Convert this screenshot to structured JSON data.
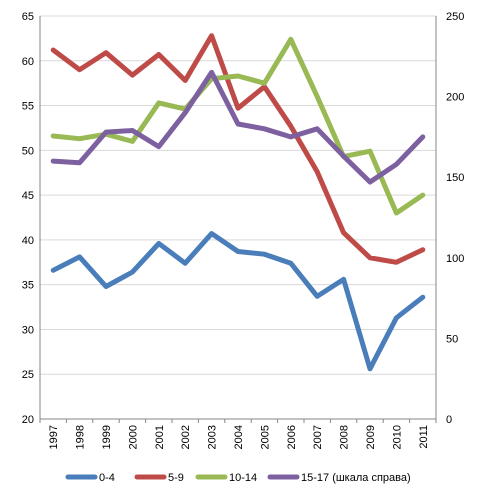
{
  "chart_data": {
    "type": "line",
    "title": "",
    "xlabel": "",
    "ylabel": "",
    "x": [
      "1997",
      "1998",
      "1999",
      "2000",
      "2001",
      "2002",
      "2003",
      "2004",
      "2005",
      "2006",
      "2007",
      "2008",
      "2009",
      "2010",
      "2011"
    ],
    "y_left_range": [
      20,
      65
    ],
    "y_left_ticks": [
      "20",
      "25",
      "30",
      "35",
      "40",
      "45",
      "50",
      "55",
      "60",
      "65"
    ],
    "y_right_range": [
      0,
      250
    ],
    "y_right_ticks": [
      "0",
      "50",
      "100",
      "150",
      "200",
      "250"
    ],
    "grid": "horizontal",
    "legend_position": "bottom",
    "series": [
      {
        "name": "0-4",
        "axis": "left",
        "color": "#4a7ebb",
        "values": [
          36.6,
          38.1,
          34.8,
          36.4,
          39.6,
          37.4,
          40.7,
          38.7,
          38.4,
          37.4,
          33.7,
          35.6,
          25.6,
          31.3,
          33.6
        ]
      },
      {
        "name": "5-9",
        "axis": "left",
        "color": "#be4b48",
        "values": [
          61.2,
          59.0,
          60.9,
          58.4,
          60.7,
          57.8,
          62.8,
          54.7,
          57.1,
          52.7,
          47.6,
          40.8,
          38.0,
          37.5,
          38.9
        ]
      },
      {
        "name": "10-14",
        "axis": "left",
        "color": "#98b954",
        "values": [
          51.6,
          51.3,
          51.8,
          51.0,
          55.3,
          54.6,
          58.0,
          58.3,
          57.5,
          62.4,
          56.0,
          49.3,
          49.9,
          43.0,
          45.0
        ]
      },
      {
        "name": "15-17 (шкала справа)",
        "axis": "right",
        "color": "#7d60a0",
        "values": [
          160,
          159,
          178,
          179,
          169,
          190,
          215,
          183,
          180,
          175,
          180,
          163,
          147,
          158,
          175
        ]
      }
    ]
  }
}
